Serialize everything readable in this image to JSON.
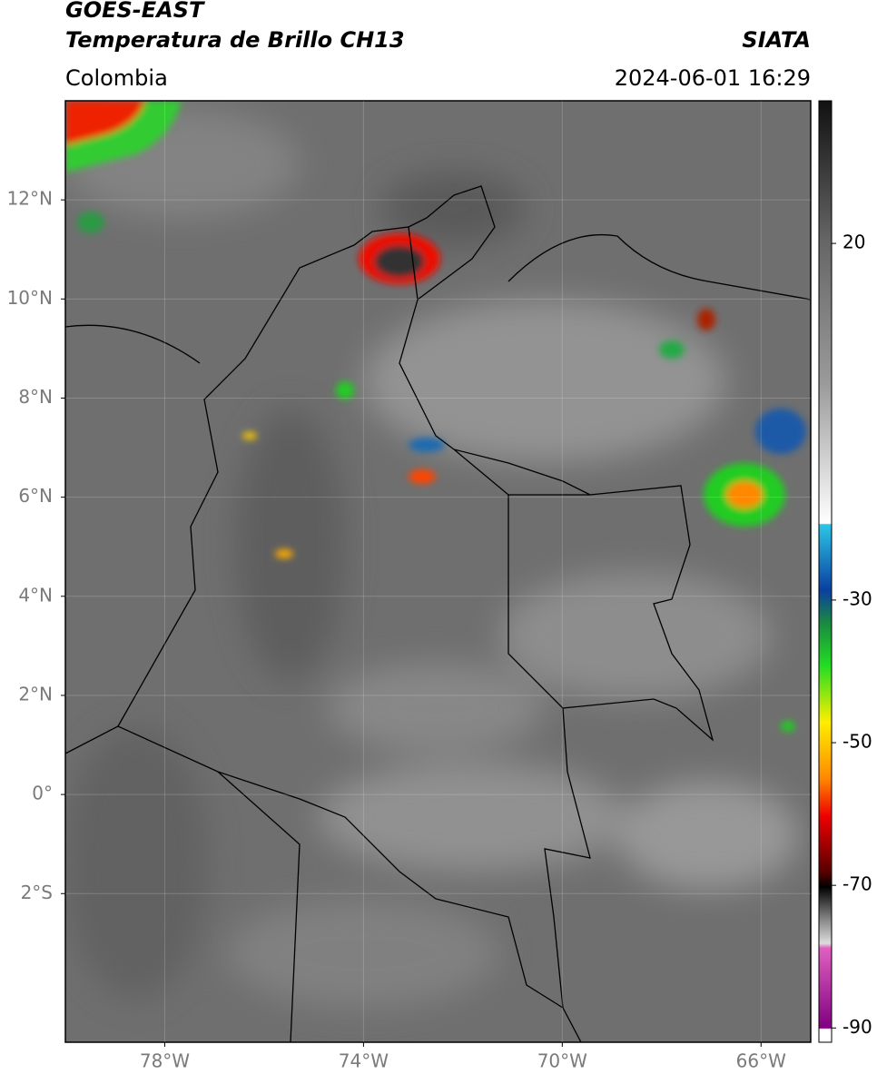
{
  "header": {
    "title": "GOES-EAST",
    "subtitle": "Temperatura de Brillo CH13",
    "source": "SIATA",
    "region": "Colombia",
    "timestamp": "2024-06-01 16:29"
  },
  "map": {
    "xlim": [
      -80,
      -65
    ],
    "ylim": [
      -5,
      14
    ],
    "grid": true,
    "xticks": [
      {
        "value": -78,
        "label": "78°W"
      },
      {
        "value": -74,
        "label": "74°W"
      },
      {
        "value": -70,
        "label": "70°W"
      },
      {
        "value": -66,
        "label": "66°W"
      }
    ],
    "yticks": [
      {
        "value": 12,
        "label": "12°N"
      },
      {
        "value": 10,
        "label": "10°N"
      },
      {
        "value": 8,
        "label": "8°N"
      },
      {
        "value": 6,
        "label": "6°N"
      },
      {
        "value": 4,
        "label": "4°N"
      },
      {
        "value": 2,
        "label": "2°N"
      },
      {
        "value": 0,
        "label": "0°"
      },
      {
        "value": -2,
        "label": "2°S"
      }
    ]
  },
  "colorbar": {
    "lim": [
      -92,
      40
    ],
    "ticks": [
      -90,
      -70,
      -50,
      -30,
      20
    ]
  }
}
